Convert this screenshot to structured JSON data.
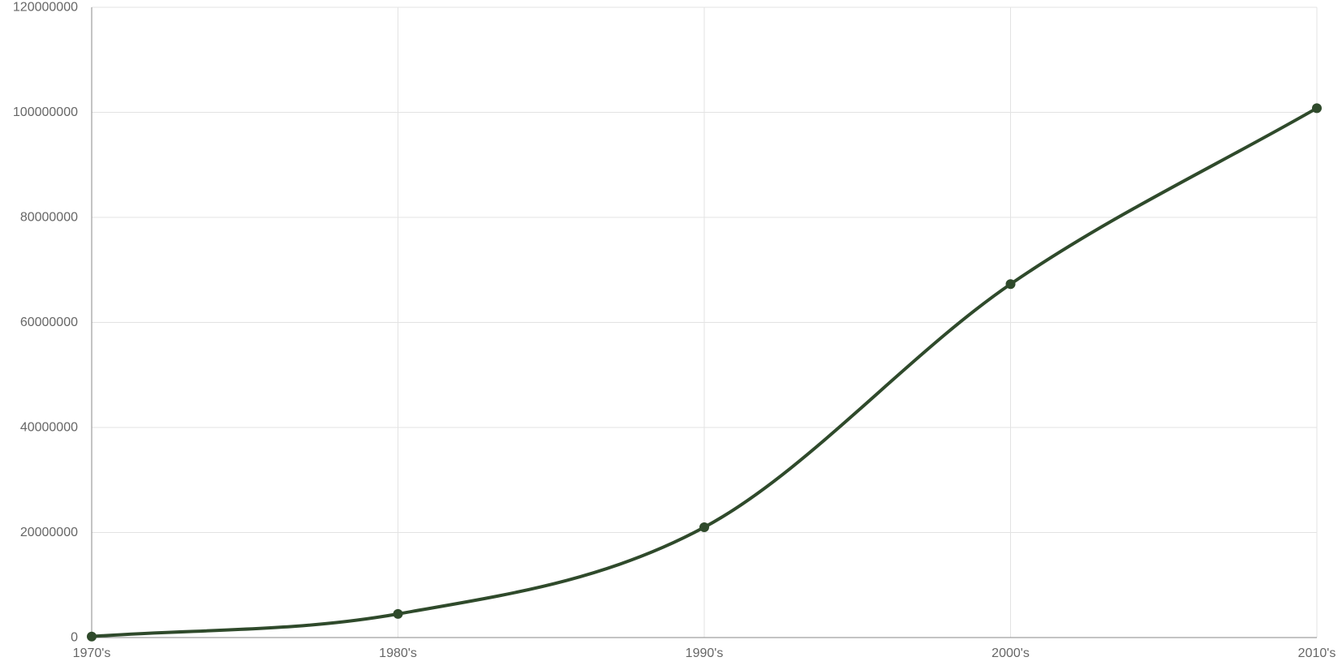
{
  "chart_data": {
    "type": "line",
    "categories": [
      "1970's",
      "1980's",
      "1990's",
      "2000's",
      "2010's"
    ],
    "series": [
      {
        "values": [
          200000,
          4500000,
          21000000,
          67300000,
          100800000
        ]
      }
    ],
    "ylim": [
      0,
      120000000
    ],
    "y_ticks": [
      "0",
      "20000000",
      "40000000",
      "60000000",
      "80000000",
      "100000000",
      "120000000"
    ],
    "grid": true,
    "title": "",
    "xlabel": "",
    "ylabel": ""
  },
  "colors": {
    "line": "#2f4a2b",
    "grid": "#e3e3e3",
    "axis": "#8a8a8a",
    "tick_text": "#666666"
  }
}
